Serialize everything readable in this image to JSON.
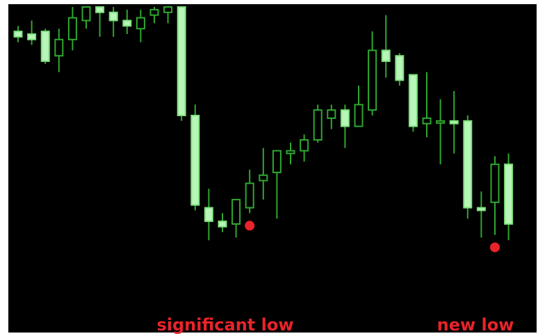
{
  "chart_data": {
    "type": "candlestick",
    "title": "",
    "xlabel": "",
    "ylabel": "",
    "grid": false,
    "ylim": [
      0,
      100
    ],
    "colors": {
      "background": "#000000",
      "bull_body_fill": "#000000",
      "bull_outline": "#2fa82f",
      "bear_body_fill": "#b8f5b8",
      "bear_outline": "#7de07d",
      "wick": "#2fa82f",
      "marker": "#e8242a",
      "annotation_text": "#e8242a"
    },
    "candles": [
      {
        "o": 91.0,
        "h": 93.0,
        "l": 87.0,
        "c": 89.0
      },
      {
        "o": 90.0,
        "h": 95.0,
        "l": 86.0,
        "c": 88.0
      },
      {
        "o": 91.0,
        "h": 92.0,
        "l": 79.0,
        "c": 80.0
      },
      {
        "o": 82.0,
        "h": 92.0,
        "l": 76.0,
        "c": 88.0
      },
      {
        "o": 88.0,
        "h": 100.0,
        "l": 84.0,
        "c": 96.0
      },
      {
        "o": 95.0,
        "h": 100.0,
        "l": 92.0,
        "c": 100.0
      },
      {
        "o": 100.0,
        "h": 100.0,
        "l": 89.0,
        "c": 98.0
      },
      {
        "o": 98.0,
        "h": 100.0,
        "l": 89.0,
        "c": 95.0
      },
      {
        "o": 95.0,
        "h": 99.0,
        "l": 90.0,
        "c": 93.0
      },
      {
        "o": 92.0,
        "h": 99.0,
        "l": 87.0,
        "c": 96.0
      },
      {
        "o": 97.0,
        "h": 100.0,
        "l": 94.0,
        "c": 99.0
      },
      {
        "o": 98.0,
        "h": 100.0,
        "l": 94.0,
        "c": 100.0
      },
      {
        "o": 100.0,
        "h": 100.0,
        "l": 58.0,
        "c": 60.0
      },
      {
        "o": 60.0,
        "h": 64.0,
        "l": 25.0,
        "c": 27.0
      },
      {
        "o": 26.0,
        "h": 33.0,
        "l": 14.0,
        "c": 21.0
      },
      {
        "o": 21.0,
        "h": 24.0,
        "l": 17.0,
        "c": 19.0
      },
      {
        "o": 20.0,
        "h": 29.0,
        "l": 15.0,
        "c": 29.0
      },
      {
        "o": 26.0,
        "h": 40.0,
        "l": 24.0,
        "c": 35.0
      },
      {
        "o": 36.0,
        "h": 48.0,
        "l": 29.0,
        "c": 38.0
      },
      {
        "o": 39.0,
        "h": 47.0,
        "l": 22.0,
        "c": 47.0
      },
      {
        "o": 46.0,
        "h": 50.0,
        "l": 42.0,
        "c": 47.0
      },
      {
        "o": 47.0,
        "h": 53.0,
        "l": 43.0,
        "c": 51.0
      },
      {
        "o": 51.0,
        "h": 64.0,
        "l": 50.0,
        "c": 62.0
      },
      {
        "o": 59.0,
        "h": 64.0,
        "l": 55.0,
        "c": 62.0
      },
      {
        "o": 62.0,
        "h": 64.0,
        "l": 48.0,
        "c": 56.0
      },
      {
        "o": 56.0,
        "h": 71.0,
        "l": 56.0,
        "c": 64.0
      },
      {
        "o": 62.0,
        "h": 91.0,
        "l": 60.0,
        "c": 84.0
      },
      {
        "o": 84.0,
        "h": 97.0,
        "l": 74.0,
        "c": 80.0
      },
      {
        "o": 82.0,
        "h": 83.0,
        "l": 71.0,
        "c": 73.0
      },
      {
        "o": 75.0,
        "h": 75.0,
        "l": 54.0,
        "c": 56.0
      },
      {
        "o": 57.0,
        "h": 76.0,
        "l": 52.0,
        "c": 59.0
      },
      {
        "o": 58.0,
        "h": 66.0,
        "l": 42.0,
        "c": 58.0
      },
      {
        "o": 58.0,
        "h": 69.0,
        "l": 46.0,
        "c": 57.0
      },
      {
        "o": 58.0,
        "h": 60.0,
        "l": 22.0,
        "c": 26.0
      },
      {
        "o": 26.0,
        "h": 32.0,
        "l": 15.0,
        "c": 25.0
      },
      {
        "o": 28.0,
        "h": 45.0,
        "l": 16.0,
        "c": 42.0
      },
      {
        "o": 42.0,
        "h": 46.0,
        "l": 14.0,
        "c": 20.0
      }
    ],
    "annotations": [
      {
        "candle": 17,
        "label": "significant low"
      },
      {
        "candle": 35,
        "label": "new low"
      }
    ]
  }
}
